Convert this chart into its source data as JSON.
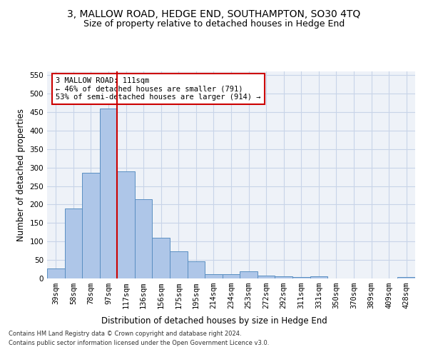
{
  "title": "3, MALLOW ROAD, HEDGE END, SOUTHAMPTON, SO30 4TQ",
  "subtitle": "Size of property relative to detached houses in Hedge End",
  "xlabel": "Distribution of detached houses by size in Hedge End",
  "ylabel": "Number of detached properties",
  "categories": [
    "39sqm",
    "58sqm",
    "78sqm",
    "97sqm",
    "117sqm",
    "136sqm",
    "156sqm",
    "175sqm",
    "195sqm",
    "214sqm",
    "234sqm",
    "253sqm",
    "272sqm",
    "292sqm",
    "311sqm",
    "331sqm",
    "350sqm",
    "370sqm",
    "389sqm",
    "409sqm",
    "428sqm"
  ],
  "values": [
    28,
    190,
    285,
    460,
    290,
    215,
    110,
    73,
    46,
    12,
    12,
    20,
    8,
    6,
    4,
    5,
    0,
    0,
    0,
    0,
    4
  ],
  "bar_color": "#aec6e8",
  "bar_edge_color": "#5a8fc2",
  "vline_x_index": 3,
  "vline_color": "#cc0000",
  "annotation_text": "3 MALLOW ROAD: 111sqm\n← 46% of detached houses are smaller (791)\n53% of semi-detached houses are larger (914) →",
  "annotation_box_color": "#ffffff",
  "annotation_box_edge": "#cc0000",
  "footer1": "Contains HM Land Registry data © Crown copyright and database right 2024.",
  "footer2": "Contains public sector information licensed under the Open Government Licence v3.0.",
  "ylim": [
    0,
    560
  ],
  "yticks": [
    0,
    50,
    100,
    150,
    200,
    250,
    300,
    350,
    400,
    450,
    500,
    550
  ],
  "grid_color": "#c8d4e8",
  "bg_color": "#eef2f8",
  "title_fontsize": 10,
  "subtitle_fontsize": 9,
  "tick_fontsize": 7.5,
  "label_fontsize": 8.5,
  "footer_fontsize": 6,
  "annot_fontsize": 7.5
}
